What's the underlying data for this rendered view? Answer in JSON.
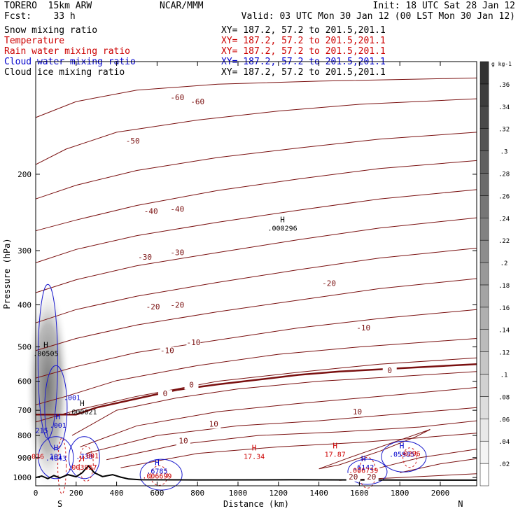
{
  "header": {
    "model": "TORERO  15km ARW",
    "fcst": "Fcst:    33 h",
    "center": "NCAR/MMM",
    "init": "Init: 18 UTC Sat 28 Jan 12",
    "valid": "Valid: 03 UTC Mon 30 Jan 12 (00 LST Mon 30 Jan 12)",
    "fields": [
      {
        "name": "Snow mixing ratio",
        "xy": "XY= 187.2, 57.2 to 201.5,201.1",
        "color": "#000000"
      },
      {
        "name": "Temperature",
        "xy": "XY= 187.2, 57.2 to 201.5,201.1",
        "color": "#cc0000"
      },
      {
        "name": "Rain water mixing ratio",
        "xy": "XY= 187.2, 57.2 to 201.5,201.1",
        "color": "#cc0000"
      },
      {
        "name": "Cloud water mixing ratio",
        "xy": "XY= 187.2, 57.2 to 201.5,201.1",
        "color": "#0000cc"
      },
      {
        "name": "Cloud ice mixing ratio",
        "xy": "XY= 187.2, 57.2 to 201.5,201.1",
        "color": "#000000"
      }
    ]
  },
  "chart_data": {
    "type": "cross-section",
    "xlabel": "Distance (km)",
    "ylabel": "Pressure (hPa)",
    "xlim": [
      0,
      2180
    ],
    "ylim": [
      1045,
      110
    ],
    "yscale": "log",
    "x_ticks": [
      0,
      200,
      400,
      600,
      800,
      1000,
      1200,
      1400,
      1600,
      1800,
      2000
    ],
    "y_ticks": [
      200,
      300,
      400,
      500,
      600,
      700,
      800,
      900,
      1000
    ],
    "endpoint_labels": {
      "left": "S",
      "right": "N"
    },
    "temperature_labels": [
      {
        "x": 700,
        "p": 135,
        "v": "-60"
      },
      {
        "x": 800,
        "p": 138,
        "v": "-60"
      },
      {
        "x": 480,
        "p": 170,
        "v": "-50"
      },
      {
        "x": 570,
        "p": 247,
        "v": "-40"
      },
      {
        "x": 700,
        "p": 244,
        "v": "-40"
      },
      {
        "x": 540,
        "p": 315,
        "v": "-30"
      },
      {
        "x": 700,
        "p": 307,
        "v": "-30"
      },
      {
        "x": 1450,
        "p": 362,
        "v": "-20"
      },
      {
        "x": 580,
        "p": 410,
        "v": "-20"
      },
      {
        "x": 700,
        "p": 406,
        "v": "-20"
      },
      {
        "x": 1620,
        "p": 458,
        "v": "-10"
      },
      {
        "x": 650,
        "p": 517,
        "v": "-10"
      },
      {
        "x": 780,
        "p": 495,
        "v": "-10"
      },
      {
        "x": 640,
        "p": 650,
        "v": "0"
      },
      {
        "x": 770,
        "p": 620,
        "v": "0"
      },
      {
        "x": 1750,
        "p": 575,
        "v": "0"
      },
      {
        "x": 1590,
        "p": 716,
        "v": "10"
      },
      {
        "x": 880,
        "p": 763,
        "v": "10"
      },
      {
        "x": 730,
        "p": 835,
        "v": "10"
      },
      {
        "x": 1570,
        "p": 1010,
        "v": "20"
      },
      {
        "x": 1660,
        "p": 1010,
        "v": "20"
      }
    ],
    "maxima_labels": [
      {
        "x": 1220,
        "p": 270,
        "t": "H",
        "v": ".000296",
        "color": "#000000"
      },
      {
        "x": 50,
        "p": 525,
        "t": "H",
        "v": ".00505",
        "color": "#000000"
      },
      {
        "x": 230,
        "p": 715,
        "t": "H",
        "v": ".000021",
        "color": "#000000"
      },
      {
        "x": 110,
        "p": 768,
        "t": "H",
        "v": ".001",
        "color": "#0000cc"
      },
      {
        "x": 30,
        "p": 790,
        "t": "",
        "v": "215",
        "color": "#0000cc"
      },
      {
        "x": 180,
        "p": 663,
        "t": "",
        "v": ".001",
        "color": "#0000cc"
      },
      {
        "x": 100,
        "p": 905,
        "t": "H",
        "v": "101",
        "color": "#0000cc"
      },
      {
        "x": 100,
        "p": 915,
        "t": "",
        "v": ".4043",
        "color": "#0000cc"
      },
      {
        "x": 0,
        "p": 905,
        "t": "",
        "v": ".036",
        "color": "#cc0000"
      },
      {
        "x": 240,
        "p": 905,
        "t": "",
        "v": ".738",
        "color": "#0000cc"
      },
      {
        "x": 270,
        "p": 903,
        "t": "",
        "v": ".001",
        "color": "#cc0000"
      },
      {
        "x": 230,
        "p": 960,
        "t": "H",
        "v": ".003957",
        "color": "#cc0000"
      },
      {
        "x": 600,
        "p": 980,
        "t": "H",
        "v": ".6785",
        "color": "#0000cc"
      },
      {
        "x": 600,
        "p": 1005,
        "t": "",
        "v": ".006699",
        "color": "#cc0000"
      },
      {
        "x": 1080,
        "p": 905,
        "t": "H",
        "v": "17.34",
        "color": "#cc0000"
      },
      {
        "x": 1480,
        "p": 895,
        "t": "H",
        "v": "17.87",
        "color": "#cc0000"
      },
      {
        "x": 1620,
        "p": 960,
        "t": "H",
        "v": ".6142",
        "color": "#0000cc"
      },
      {
        "x": 1620,
        "p": 975,
        "t": "",
        "v": ".006739",
        "color": "#cc0000"
      },
      {
        "x": 1810,
        "p": 895,
        "t": "H",
        "v": ".05985",
        "color": "#0000cc"
      },
      {
        "x": 1850,
        "p": 893,
        "t": "",
        "v": ".0296",
        "color": "#cc0000"
      }
    ],
    "colorbar": {
      "unit": "g kg-1",
      "ticks": [
        ".02",
        ".04",
        ".06",
        ".08",
        ".1",
        ".12",
        ".14",
        ".16",
        ".18",
        ".2",
        ".22",
        ".24",
        ".26",
        ".28",
        ".3",
        ".32",
        ".34",
        ".36"
      ]
    }
  }
}
